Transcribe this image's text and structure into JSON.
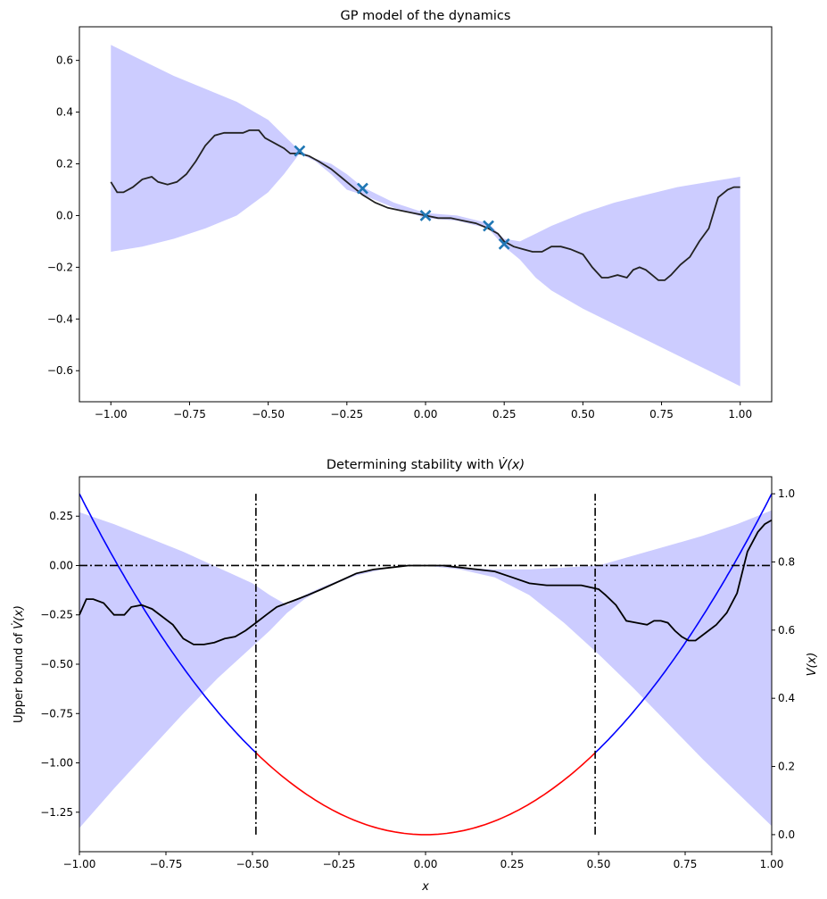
{
  "chart_data": [
    {
      "type": "line",
      "title": "GP model of the dynamics",
      "xlabel": "",
      "ylabel": "",
      "xlim": [
        -1.1,
        1.1
      ],
      "ylim": [
        -0.72,
        0.73
      ],
      "xticks": [
        -1.0,
        -0.75,
        -0.5,
        -0.25,
        0.0,
        0.25,
        0.5,
        0.75,
        1.0
      ],
      "xtick_labels": [
        "−1.00",
        "−0.75",
        "−0.50",
        "−0.25",
        "0.00",
        "0.25",
        "0.50",
        "0.75",
        "1.00"
      ],
      "yticks": [
        -0.6,
        -0.4,
        -0.2,
        0.0,
        0.2,
        0.4,
        0.6
      ],
      "ytick_labels": [
        "−0.6",
        "−0.4",
        "−0.2",
        "0.0",
        "0.2",
        "0.4",
        "0.6"
      ],
      "grid": false,
      "colors": {
        "mean": "#222222",
        "band": "#ccccff",
        "points": "#1f77b4"
      },
      "band": {
        "x": [
          -1.0,
          -0.9,
          -0.8,
          -0.7,
          -0.6,
          -0.5,
          -0.45,
          -0.4,
          -0.35,
          -0.3,
          -0.25,
          -0.2,
          -0.1,
          0.0,
          0.1,
          0.2,
          0.25,
          0.3,
          0.35,
          0.4,
          0.5,
          0.6,
          0.7,
          0.8,
          0.9,
          1.0
        ],
        "upper": [
          0.66,
          0.6,
          0.54,
          0.49,
          0.44,
          0.37,
          0.31,
          0.25,
          0.22,
          0.2,
          0.16,
          0.11,
          0.05,
          0.01,
          0.0,
          -0.03,
          -0.09,
          -0.1,
          -0.07,
          -0.04,
          0.01,
          0.05,
          0.08,
          0.11,
          0.13,
          0.15
        ],
        "lower": [
          -0.14,
          -0.12,
          -0.09,
          -0.05,
          0.0,
          0.09,
          0.16,
          0.24,
          0.21,
          0.16,
          0.1,
          0.08,
          0.03,
          -0.01,
          -0.02,
          -0.05,
          -0.12,
          -0.17,
          -0.24,
          -0.29,
          -0.36,
          -0.42,
          -0.48,
          -0.54,
          -0.6,
          -0.66
        ]
      },
      "mean": {
        "x": [
          -1.0,
          -0.98,
          -0.96,
          -0.93,
          -0.9,
          -0.87,
          -0.85,
          -0.82,
          -0.79,
          -0.76,
          -0.73,
          -0.7,
          -0.67,
          -0.64,
          -0.61,
          -0.58,
          -0.56,
          -0.53,
          -0.51,
          -0.48,
          -0.45,
          -0.43,
          -0.4,
          -0.37,
          -0.34,
          -0.3,
          -0.27,
          -0.24,
          -0.2,
          -0.16,
          -0.12,
          -0.08,
          -0.04,
          0.0,
          0.04,
          0.08,
          0.12,
          0.16,
          0.2,
          0.23,
          0.25,
          0.28,
          0.31,
          0.34,
          0.37,
          0.4,
          0.43,
          0.46,
          0.5,
          0.53,
          0.56,
          0.58,
          0.61,
          0.64,
          0.66,
          0.68,
          0.7,
          0.72,
          0.74,
          0.76,
          0.78,
          0.81,
          0.84,
          0.87,
          0.9,
          0.93,
          0.96,
          0.98,
          1.0
        ],
        "y": [
          0.13,
          0.09,
          0.09,
          0.11,
          0.14,
          0.15,
          0.13,
          0.12,
          0.13,
          0.16,
          0.21,
          0.27,
          0.31,
          0.32,
          0.32,
          0.32,
          0.33,
          0.33,
          0.3,
          0.28,
          0.26,
          0.24,
          0.24,
          0.23,
          0.21,
          0.18,
          0.15,
          0.12,
          0.08,
          0.05,
          0.03,
          0.02,
          0.01,
          0.0,
          -0.01,
          -0.01,
          -0.02,
          -0.03,
          -0.05,
          -0.07,
          -0.1,
          -0.12,
          -0.13,
          -0.14,
          -0.14,
          -0.12,
          -0.12,
          -0.13,
          -0.15,
          -0.2,
          -0.24,
          -0.24,
          -0.23,
          -0.24,
          -0.21,
          -0.2,
          -0.21,
          -0.23,
          -0.25,
          -0.25,
          -0.23,
          -0.19,
          -0.16,
          -0.1,
          -0.05,
          0.07,
          0.1,
          0.11,
          0.11
        ]
      },
      "points": {
        "x": [
          -0.4,
          -0.2,
          0.0,
          0.2,
          0.25
        ],
        "y": [
          0.25,
          0.105,
          0.0,
          -0.04,
          -0.11
        ]
      }
    },
    {
      "type": "line",
      "title": "Determining stability with ",
      "title_symbol": "V̇(x)",
      "xlabel": "x",
      "ylabel": "Upper bound of ",
      "ylabel_symbol": "V̇(x)",
      "ylabel_right": "V(x)",
      "xlim": [
        -1.0,
        1.0
      ],
      "ylim": [
        -1.45,
        0.45
      ],
      "ylim_right": [
        -0.05,
        1.05
      ],
      "xticks": [
        -1.0,
        -0.75,
        -0.5,
        -0.25,
        0.0,
        0.25,
        0.5,
        0.75,
        1.0
      ],
      "xtick_labels": [
        "−1.00",
        "−0.75",
        "−0.50",
        "−0.25",
        "0.00",
        "0.25",
        "0.50",
        "0.75",
        "1.00"
      ],
      "yticks": [
        -1.25,
        -1.0,
        -0.75,
        -0.5,
        -0.25,
        0.0,
        0.25
      ],
      "ytick_labels": [
        "−1.25",
        "−1.00",
        "−0.75",
        "−0.50",
        "−0.25",
        "0.00",
        "0.25"
      ],
      "yticks_right": [
        0.0,
        0.2,
        0.4,
        0.6,
        0.8,
        1.0
      ],
      "ytick_labels_right": [
        "0.0",
        "0.2",
        "0.4",
        "0.6",
        "0.8",
        "1.0"
      ],
      "grid": false,
      "colors": {
        "mean": "#000000",
        "band": "#ccccff",
        "lyap_outside": "#0000ff",
        "lyap_inside": "#ff0000",
        "guides": "#000000"
      },
      "band": {
        "x": [
          -1.0,
          -0.9,
          -0.8,
          -0.7,
          -0.6,
          -0.5,
          -0.45,
          -0.4,
          -0.35,
          -0.3,
          -0.2,
          -0.1,
          0.0,
          0.1,
          0.2,
          0.3,
          0.4,
          0.5,
          0.6,
          0.7,
          0.8,
          0.9,
          1.0
        ],
        "upper": [
          0.27,
          0.21,
          0.14,
          0.07,
          -0.01,
          -0.09,
          -0.15,
          -0.2,
          -0.15,
          -0.11,
          -0.04,
          -0.01,
          0.0,
          -0.01,
          -0.02,
          -0.02,
          -0.01,
          0.0,
          0.05,
          0.1,
          0.15,
          0.21,
          0.28
        ],
        "lower": [
          -1.33,
          -1.13,
          -0.94,
          -0.75,
          -0.57,
          -0.41,
          -0.33,
          -0.24,
          -0.17,
          -0.12,
          -0.05,
          -0.01,
          0.0,
          -0.02,
          -0.06,
          -0.15,
          -0.29,
          -0.45,
          -0.62,
          -0.8,
          -0.98,
          -1.15,
          -1.32
        ]
      },
      "mean": {
        "x": [
          -1.0,
          -0.98,
          -0.96,
          -0.93,
          -0.9,
          -0.87,
          -0.85,
          -0.82,
          -0.79,
          -0.76,
          -0.73,
          -0.7,
          -0.67,
          -0.64,
          -0.61,
          -0.58,
          -0.55,
          -0.52,
          -0.49,
          -0.46,
          -0.43,
          -0.4,
          -0.37,
          -0.34,
          -0.3,
          -0.25,
          -0.2,
          -0.15,
          -0.1,
          -0.05,
          0.0,
          0.05,
          0.1,
          0.15,
          0.2,
          0.25,
          0.3,
          0.35,
          0.4,
          0.45,
          0.5,
          0.52,
          0.55,
          0.58,
          0.61,
          0.64,
          0.66,
          0.68,
          0.7,
          0.72,
          0.74,
          0.76,
          0.78,
          0.81,
          0.84,
          0.87,
          0.9,
          0.93,
          0.96,
          0.98,
          1.0
        ],
        "y": [
          -0.25,
          -0.17,
          -0.17,
          -0.19,
          -0.25,
          -0.25,
          -0.21,
          -0.2,
          -0.22,
          -0.26,
          -0.3,
          -0.37,
          -0.4,
          -0.4,
          -0.39,
          -0.37,
          -0.36,
          -0.33,
          -0.29,
          -0.25,
          -0.21,
          -0.19,
          -0.17,
          -0.15,
          -0.12,
          -0.08,
          -0.04,
          -0.02,
          -0.01,
          0.0,
          0.0,
          0.0,
          -0.01,
          -0.02,
          -0.03,
          -0.06,
          -0.09,
          -0.1,
          -0.1,
          -0.1,
          -0.12,
          -0.15,
          -0.2,
          -0.28,
          -0.29,
          -0.3,
          -0.28,
          -0.28,
          -0.29,
          -0.33,
          -0.36,
          -0.38,
          -0.38,
          -0.34,
          -0.3,
          -0.24,
          -0.14,
          0.07,
          0.17,
          0.21,
          0.23
        ]
      },
      "lyapunov_c": 1.0,
      "level_x": 0.49,
      "zero_line_y": 0.0
    }
  ]
}
